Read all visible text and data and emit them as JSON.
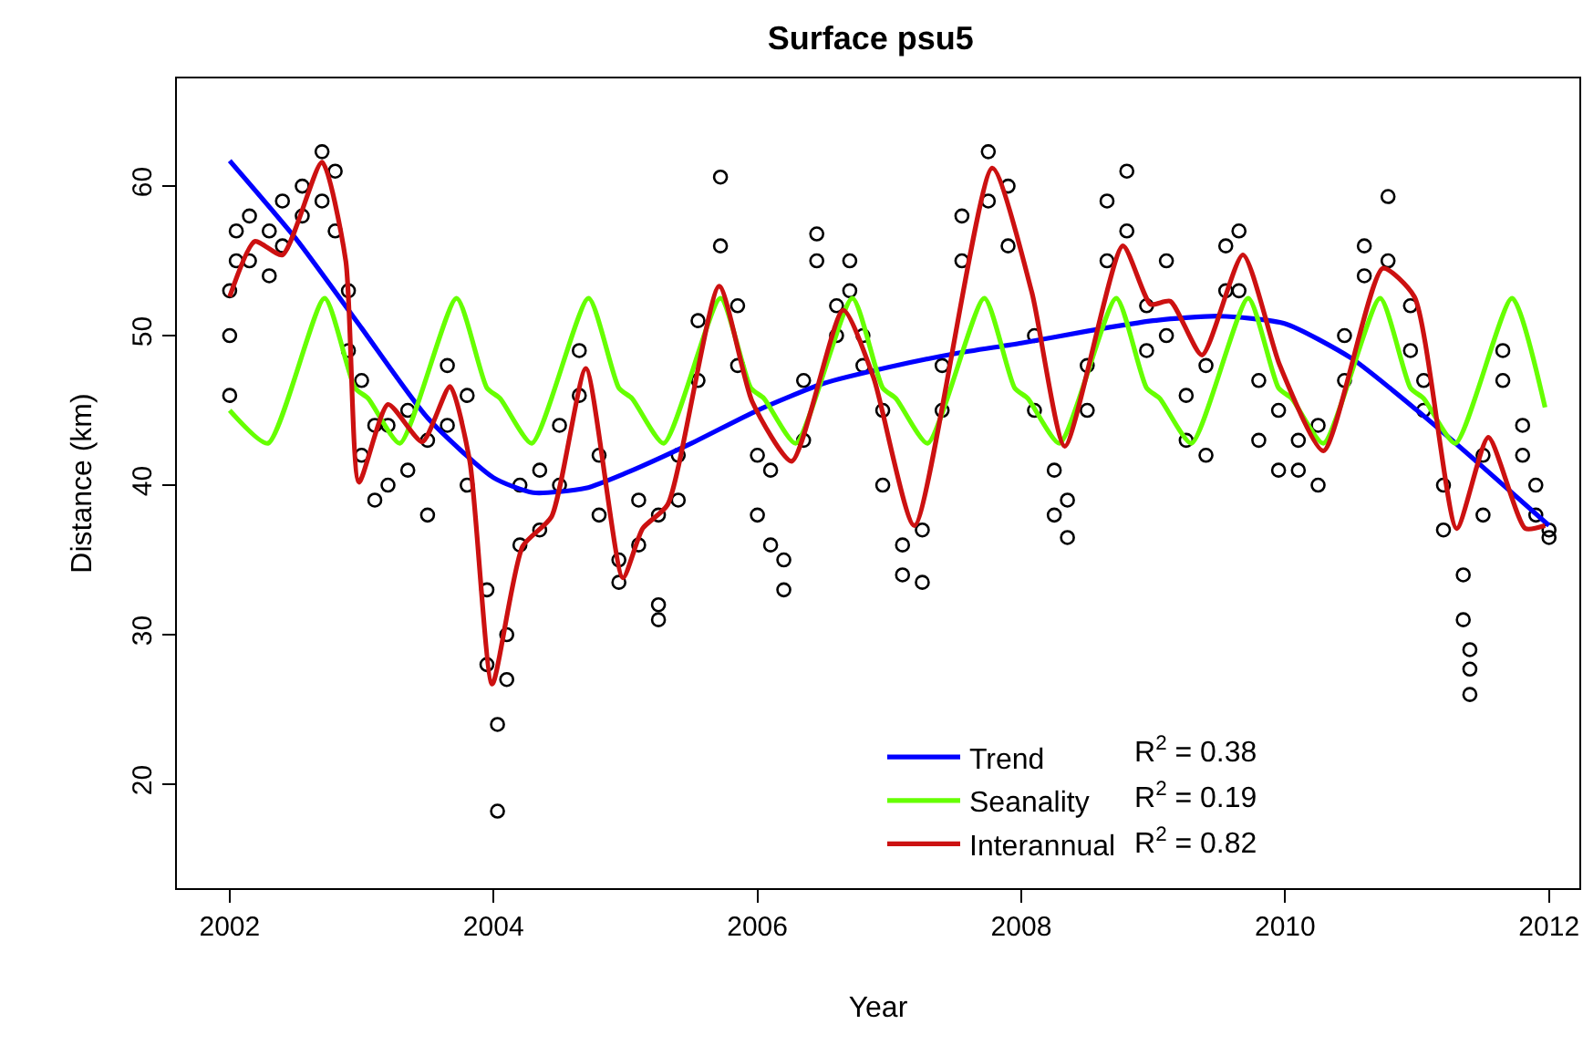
{
  "chart_data": {
    "type": "scatter",
    "title": "Surface psu5",
    "xlabel": "Year",
    "ylabel": "Distance (km)",
    "xlim": [
      2001.6,
      2012.23
    ],
    "xticks": [
      2002,
      2004,
      2006,
      2008,
      2010,
      2012
    ],
    "ylim": [
      13.05,
      67.2
    ],
    "yticks": [
      20,
      30,
      40,
      50,
      60
    ],
    "legend": "bottom",
    "annotations": [
      "R$^{2}$ = 0.38",
      "R$^{2}$ = 0.19",
      "R$^{2}$ = 0.82"
    ],
    "series": [
      {
        "color": "#000000",
        "marker": "circle",
        "x": [
          2002.0,
          2002.0,
          2002.0,
          2002.05,
          2002.05,
          2002.15,
          2002.15,
          2002.3,
          2002.3,
          2002.4,
          2002.4,
          2002.55,
          2002.55,
          2002.7,
          2002.7,
          2002.8,
          2002.8,
          2002.9,
          2002.9,
          2003.0,
          2003.0,
          2003.1,
          2003.1,
          2003.2,
          2003.2,
          2003.35,
          2003.35,
          2003.5,
          2003.5,
          2003.65,
          2003.65,
          2003.8,
          2003.8,
          2003.95,
          2003.95,
          2004.03,
          2004.03,
          2004.1,
          2004.1,
          2004.2,
          2004.2,
          2004.35,
          2004.35,
          2004.5,
          2004.5,
          2004.65,
          2004.65,
          2004.8,
          2004.8,
          2004.95,
          2004.95,
          2005.1,
          2005.1,
          2005.25,
          2005.25,
          2005.25,
          2005.4,
          2005.4,
          2005.55,
          2005.55,
          2005.72,
          2005.72,
          2005.85,
          2005.85,
          2006.0,
          2006.0,
          2006.1,
          2006.1,
          2006.2,
          2006.2,
          2006.35,
          2006.35,
          2006.45,
          2006.45,
          2006.6,
          2006.6,
          2006.7,
          2006.7,
          2006.8,
          2006.8,
          2006.95,
          2006.95,
          2007.1,
          2007.1,
          2007.25,
          2007.25,
          2007.4,
          2007.4,
          2007.55,
          2007.55,
          2007.75,
          2007.75,
          2007.9,
          2007.9,
          2008.1,
          2008.1,
          2008.25,
          2008.25,
          2008.35,
          2008.35,
          2008.5,
          2008.5,
          2008.65,
          2008.65,
          2008.8,
          2008.8,
          2008.95,
          2008.95,
          2009.1,
          2009.1,
          2009.25,
          2009.25,
          2009.4,
          2009.4,
          2009.55,
          2009.55,
          2009.65,
          2009.65,
          2009.8,
          2009.8,
          2009.95,
          2009.95,
          2010.1,
          2010.1,
          2010.25,
          2010.25,
          2010.45,
          2010.45,
          2010.6,
          2010.6,
          2010.78,
          2010.78,
          2010.95,
          2010.95,
          2011.05,
          2011.05,
          2011.2,
          2011.2,
          2011.35,
          2011.35,
          2011.4,
          2011.4,
          2011.4,
          2011.5,
          2011.5,
          2011.65,
          2011.65,
          2011.8,
          2011.8,
          2011.9,
          2011.9,
          2012.0,
          2012.0
        ],
        "values": [
          46,
          50,
          53,
          55,
          57,
          58,
          55,
          57,
          54,
          56,
          59,
          60,
          58,
          62.3,
          59,
          61,
          57,
          53,
          49,
          47,
          42,
          44,
          39,
          40,
          44,
          45,
          41,
          38,
          43,
          48,
          44,
          46,
          40,
          33,
          28,
          24,
          18.2,
          30,
          27,
          40,
          36,
          41,
          37,
          40,
          44,
          49,
          46,
          42,
          38,
          35,
          33.5,
          39,
          36,
          38,
          32,
          31,
          42,
          39,
          47,
          51,
          60.6,
          56,
          52,
          48,
          42,
          38,
          41,
          36,
          33,
          35,
          43,
          47,
          55,
          56.8,
          52,
          50,
          55,
          53,
          48,
          50,
          45,
          40,
          36,
          34,
          33.5,
          37,
          45,
          48,
          55,
          58,
          62.3,
          59,
          60,
          56,
          50,
          45,
          41,
          38,
          36.5,
          39,
          48,
          45,
          55,
          59,
          61,
          57,
          52,
          49,
          55,
          50,
          46,
          43,
          42,
          48,
          53,
          56,
          57,
          53,
          47,
          43,
          45,
          41,
          41,
          43,
          40,
          44,
          47,
          50,
          54,
          56,
          59.3,
          55,
          52,
          49,
          47,
          45,
          40,
          37,
          34,
          31,
          29,
          27.7,
          26,
          38,
          42,
          47,
          49,
          44,
          42,
          40,
          38,
          37,
          36.5
        ]
      },
      {
        "type": "line",
        "name": "Trend",
        "color": "#0000ff",
        "marker": "none",
        "x": [
          2002.0,
          2002.5,
          2003.0,
          2003.5,
          2004.0,
          2004.3,
          2004.7,
          2005.0,
          2005.5,
          2006.0,
          2006.5,
          2007.0,
          2007.5,
          2008.0,
          2008.5,
          2009.0,
          2009.5,
          2010.0,
          2010.5,
          2011.0,
          2011.5,
          2012.0
        ],
        "values": [
          61.7,
          56.5,
          50.5,
          44.5,
          40.5,
          39.5,
          39.8,
          40.8,
          42.8,
          45.0,
          46.8,
          47.9,
          48.8,
          49.5,
          50.3,
          51.0,
          51.3,
          50.8,
          48.5,
          45.0,
          41.2,
          37.3
        ]
      },
      {
        "type": "line",
        "name": "Seanality",
        "color": "#66ff00",
        "marker": "none",
        "x": [
          2002.0,
          2002.29,
          2002.72,
          2002.95,
          2003.05,
          2003.29,
          2003.72,
          2003.95,
          2004.05,
          2004.29,
          2004.72,
          2004.95,
          2005.05,
          2005.29,
          2005.72,
          2005.95,
          2006.05,
          2006.29,
          2006.72,
          2006.95,
          2007.05,
          2007.29,
          2007.72,
          2007.95,
          2008.05,
          2008.29,
          2008.72,
          2008.95,
          2009.05,
          2009.29,
          2009.72,
          2009.95,
          2010.05,
          2010.29,
          2010.72,
          2010.95,
          2011.05,
          2011.29,
          2011.72,
          2011.97
        ],
        "values": [
          45.0,
          42.8,
          52.5,
          46.5,
          45.8,
          42.8,
          52.5,
          46.5,
          45.8,
          42.8,
          52.5,
          46.5,
          45.8,
          42.8,
          52.5,
          46.5,
          45.8,
          42.8,
          52.5,
          46.5,
          45.8,
          42.8,
          52.5,
          46.5,
          45.8,
          42.8,
          52.5,
          46.5,
          45.8,
          42.8,
          52.5,
          46.5,
          45.8,
          42.8,
          52.5,
          46.5,
          45.8,
          42.8,
          52.5,
          45.2
        ]
      },
      {
        "type": "line",
        "name": "Interannual",
        "color": "#cc1111",
        "marker": "none",
        "x": [
          2002.0,
          2002.19,
          2002.4,
          2002.7,
          2002.88,
          2002.98,
          2003.2,
          2003.46,
          2003.67,
          2003.82,
          2003.99,
          2004.22,
          2004.44,
          2004.7,
          2004.98,
          2005.13,
          2005.32,
          2005.71,
          2005.96,
          2006.26,
          2006.65,
          2006.88,
          2007.19,
          2007.78,
          2008.08,
          2008.33,
          2008.77,
          2008.98,
          2009.13,
          2009.37,
          2009.68,
          2009.96,
          2010.29,
          2010.74,
          2010.98,
          2011.3,
          2011.54,
          2011.82,
          2011.97
        ],
        "values": [
          52.6,
          56.3,
          55.4,
          61.6,
          55.0,
          40.2,
          45.4,
          42.9,
          46.6,
          41.6,
          26.7,
          35.9,
          37.9,
          47.8,
          33.8,
          37.1,
          38.7,
          53.3,
          45.6,
          41.6,
          51.7,
          47.2,
          37.3,
          61.2,
          52.9,
          42.6,
          56.0,
          52.1,
          52.3,
          48.7,
          55.4,
          48.0,
          42.3,
          54.5,
          52.6,
          37.1,
          43.2,
          37.1,
          37.3
        ]
      }
    ]
  }
}
